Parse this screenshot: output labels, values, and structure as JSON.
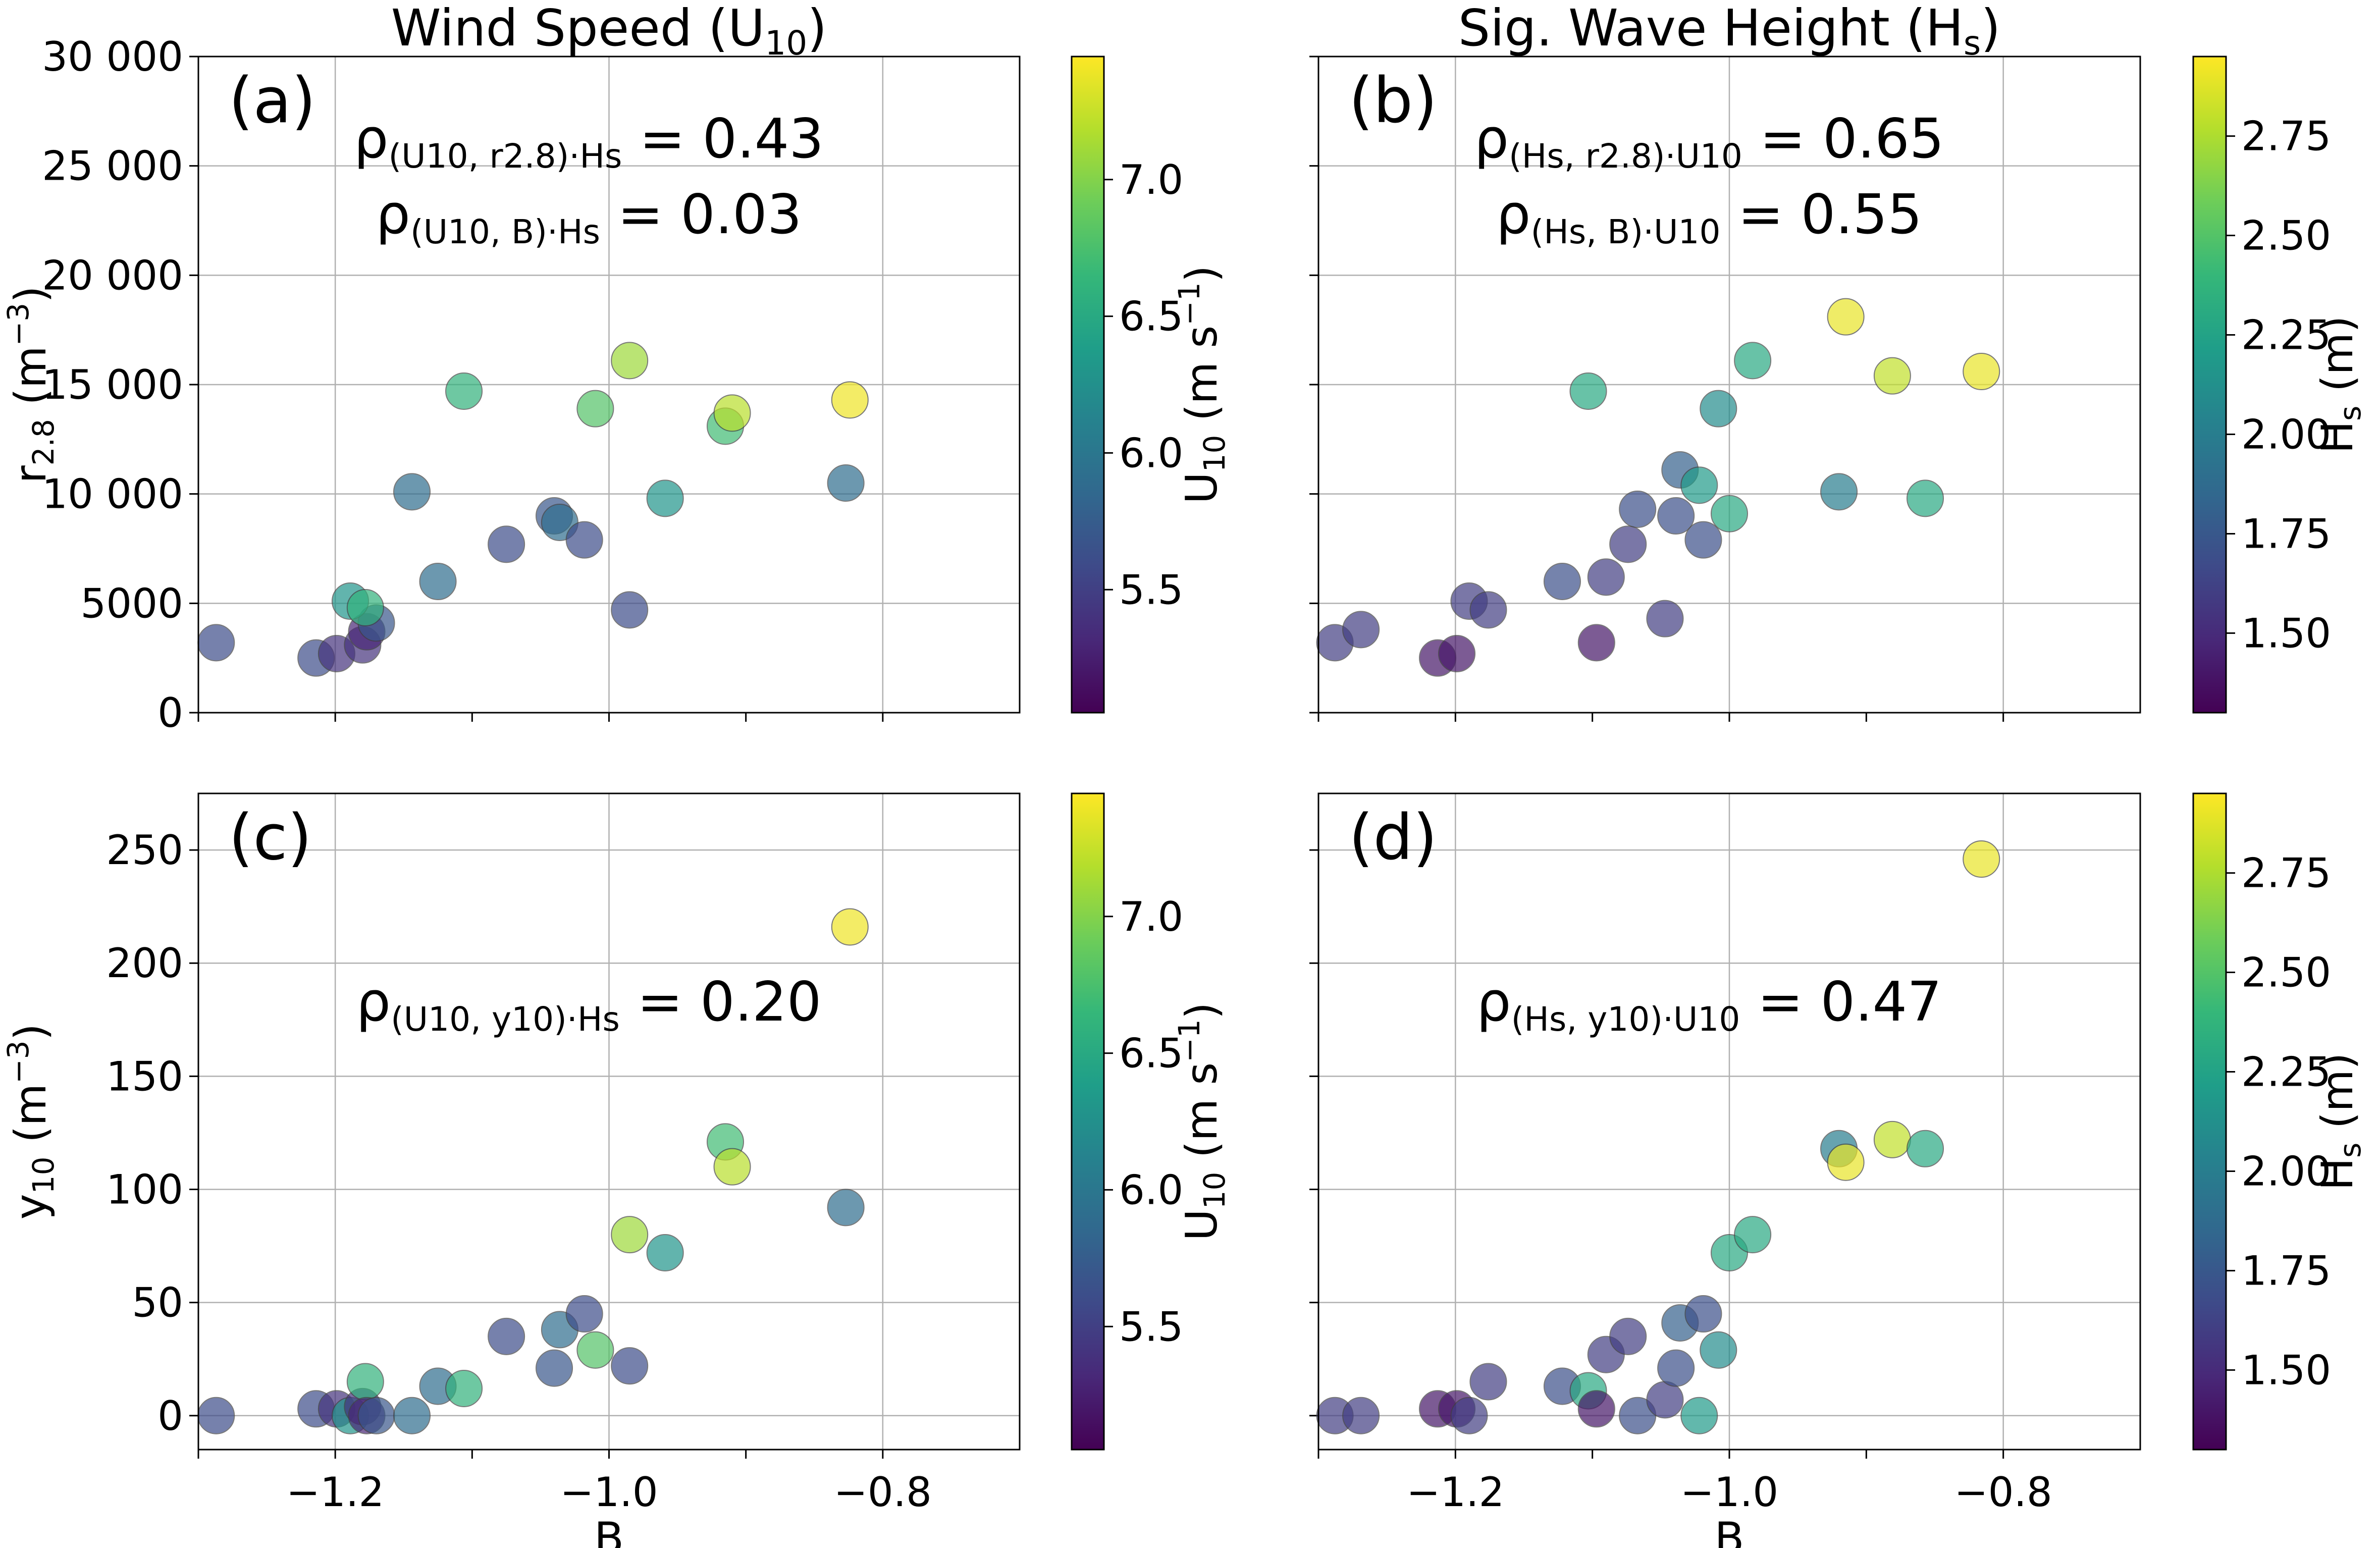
{
  "chart_data": [
    {
      "type": "scatter",
      "panel_label": "(a)",
      "title": "Wind Speed (U10)",
      "title_main": "Wind Speed (U",
      "title_sub": "10",
      "title_end": ")",
      "xlabel": "",
      "ylabel": "r2.8 (m−3)",
      "ylabel_parts": {
        "main": "r",
        "sub": "2.8",
        "mid": " (m",
        "sup": "−3",
        "end": ")"
      },
      "xlim": [
        -1.3,
        -0.7
      ],
      "ylim": [
        0,
        30000
      ],
      "xticks": [
        -1.2,
        -1.0,
        -0.8
      ],
      "xtick_labels": [
        "",
        "",
        ""
      ],
      "yticks": [
        0,
        5000,
        10000,
        15000,
        20000,
        25000,
        30000
      ],
      "ytick_labels": [
        "0",
        "5000",
        "10 000",
        "15 000",
        "20 000",
        "25 000",
        "30 000"
      ],
      "grid": true,
      "annotations": [
        {
          "text": "ρ(U10, r2.8)·Hs = 0.43",
          "parts": {
            "rho": "ρ",
            "sub": "(U10, r2.8)·Hs",
            "value": " = 0.43"
          }
        },
        {
          "text": "ρ(U10, B)·Hs = 0.03",
          "parts": {
            "rho": "ρ",
            "sub": "(U10, B)·Hs",
            "value": " = 0.03"
          }
        }
      ],
      "colorbar": {
        "label": "U10 (m s−1)",
        "label_parts": {
          "main": "U",
          "sub": "10",
          "mid": " (m s",
          "sup": "−1",
          "end": ")"
        },
        "range": [
          5.05,
          7.45
        ],
        "ticks": [
          5.5,
          6.0,
          6.5,
          7.0
        ],
        "tick_labels": [
          "5.5",
          "6.0",
          "6.5",
          "7.0"
        ],
        "colormap": "viridis"
      },
      "points": [
        {
          "x": -1.287,
          "y": 3200,
          "c": 5.6
        },
        {
          "x": -1.214,
          "y": 2500,
          "c": 5.6
        },
        {
          "x": -1.199,
          "y": 2700,
          "c": 5.4
        },
        {
          "x": -1.18,
          "y": 3100,
          "c": 5.4
        },
        {
          "x": -1.177,
          "y": 3700,
          "c": 5.3
        },
        {
          "x": -1.17,
          "y": 4100,
          "c": 5.7
        },
        {
          "x": -1.189,
          "y": 5100,
          "c": 6.3
        },
        {
          "x": -1.178,
          "y": 4800,
          "c": 6.6
        },
        {
          "x": -1.144,
          "y": 10100,
          "c": 5.9
        },
        {
          "x": -1.125,
          "y": 6000,
          "c": 5.9
        },
        {
          "x": -1.106,
          "y": 14700,
          "c": 6.6
        },
        {
          "x": -1.075,
          "y": 7700,
          "c": 5.6
        },
        {
          "x": -1.04,
          "y": 9000,
          "c": 5.7
        },
        {
          "x": -1.036,
          "y": 8700,
          "c": 5.9
        },
        {
          "x": -1.018,
          "y": 7900,
          "c": 5.6
        },
        {
          "x": -1.01,
          "y": 13900,
          "c": 6.8
        },
        {
          "x": -0.985,
          "y": 16100,
          "c": 7.1
        },
        {
          "x": -0.985,
          "y": 4700,
          "c": 5.6
        },
        {
          "x": -0.959,
          "y": 9800,
          "c": 6.3
        },
        {
          "x": -0.915,
          "y": 13100,
          "c": 6.7
        },
        {
          "x": -0.91,
          "y": 13700,
          "c": 7.2
        },
        {
          "x": -0.827,
          "y": 10500,
          "c": 5.9
        },
        {
          "x": -0.824,
          "y": 14300,
          "c": 7.4
        }
      ]
    },
    {
      "type": "scatter",
      "panel_label": "(b)",
      "title": "Sig. Wave Height (Hs)",
      "title_main": "Sig. Wave Height (H",
      "title_sub": "s",
      "title_end": ")",
      "xlabel": "",
      "ylabel": "",
      "xlim": [
        -1.3,
        -0.7
      ],
      "ylim": [
        0,
        30000
      ],
      "xticks": [
        -1.2,
        -1.0,
        -0.8
      ],
      "xtick_labels": [
        "",
        "",
        ""
      ],
      "yticks": [
        0,
        5000,
        10000,
        15000,
        20000,
        25000,
        30000
      ],
      "ytick_labels": [
        "",
        "",
        "",
        "",
        "",
        "",
        ""
      ],
      "grid": true,
      "annotations": [
        {
          "text": "ρ(Hs, r2.8)·U10 = 0.65",
          "parts": {
            "rho": "ρ",
            "sub": "(Hs, r2.8)·U10",
            "value": " = 0.65"
          }
        },
        {
          "text": "ρ(Hs, B)·U10 = 0.55",
          "parts": {
            "rho": "ρ",
            "sub": "(Hs, B)·U10",
            "value": " = 0.55"
          }
        }
      ],
      "colorbar": {
        "label": "Hs (m)",
        "label_parts": {
          "main": "H",
          "sub": "s",
          "mid": " (m",
          "sup": "",
          "end": ")"
        },
        "range": [
          1.3,
          2.95
        ],
        "ticks": [
          1.5,
          1.75,
          2.0,
          2.25,
          2.5,
          2.75
        ],
        "tick_labels": [
          "1.50",
          "1.75",
          "2.00",
          "2.25",
          "2.50",
          "2.75"
        ],
        "colormap": "viridis"
      },
      "points": [
        {
          "x": -1.288,
          "y": 3200,
          "c": 1.6
        },
        {
          "x": -1.269,
          "y": 3800,
          "c": 1.6
        },
        {
          "x": -1.213,
          "y": 2500,
          "c": 1.4
        },
        {
          "x": -1.199,
          "y": 2700,
          "c": 1.4
        },
        {
          "x": -1.19,
          "y": 5100,
          "c": 1.6
        },
        {
          "x": -1.176,
          "y": 4700,
          "c": 1.6
        },
        {
          "x": -1.122,
          "y": 6000,
          "c": 1.7
        },
        {
          "x": -1.103,
          "y": 14700,
          "c": 2.3
        },
        {
          "x": -1.097,
          "y": 3200,
          "c": 1.4
        },
        {
          "x": -1.09,
          "y": 6200,
          "c": 1.6
        },
        {
          "x": -1.074,
          "y": 7700,
          "c": 1.6
        },
        {
          "x": -1.067,
          "y": 9300,
          "c": 1.7
        },
        {
          "x": -1.047,
          "y": 4300,
          "c": 1.6
        },
        {
          "x": -1.039,
          "y": 9000,
          "c": 1.7
        },
        {
          "x": -1.036,
          "y": 11100,
          "c": 1.8
        },
        {
          "x": -1.022,
          "y": 10400,
          "c": 2.2
        },
        {
          "x": -1.019,
          "y": 7900,
          "c": 1.7
        },
        {
          "x": -1.008,
          "y": 13900,
          "c": 2.1
        },
        {
          "x": -1.0,
          "y": 9100,
          "c": 2.3
        },
        {
          "x": -0.983,
          "y": 16100,
          "c": 2.3
        },
        {
          "x": -0.92,
          "y": 10100,
          "c": 2.0
        },
        {
          "x": -0.915,
          "y": 18100,
          "c": 2.9
        },
        {
          "x": -0.881,
          "y": 15400,
          "c": 2.8
        },
        {
          "x": -0.857,
          "y": 9800,
          "c": 2.3
        },
        {
          "x": -0.816,
          "y": 15600,
          "c": 2.9
        }
      ]
    },
    {
      "type": "scatter",
      "panel_label": "(c)",
      "title": "",
      "xlabel": "B",
      "ylabel": "y10 (m−3)",
      "ylabel_parts": {
        "main": "y",
        "sub": "10",
        "mid": " (m",
        "sup": "−3",
        "end": ")"
      },
      "xlim": [
        -1.3,
        -0.7
      ],
      "ylim": [
        -15,
        275
      ],
      "xticks": [
        -1.2,
        -1.0,
        -0.8
      ],
      "xtick_labels": [
        "−1.2",
        "−1.0",
        "−0.8"
      ],
      "yticks": [
        0,
        50,
        100,
        150,
        200,
        250
      ],
      "ytick_labels": [
        "0",
        "50",
        "100",
        "150",
        "200",
        "250"
      ],
      "grid": true,
      "annotations": [
        {
          "text": "ρ(U10, y10)·Hs = 0.20",
          "parts": {
            "rho": "ρ",
            "sub": "(U10, y10)·Hs",
            "value": " = 0.20"
          }
        }
      ],
      "colorbar": {
        "label": "U10 (m s−1)",
        "label_parts": {
          "main": "U",
          "sub": "10",
          "mid": " (m s",
          "sup": "−1",
          "end": ")"
        },
        "range": [
          5.05,
          7.45
        ],
        "ticks": [
          5.5,
          6.0,
          6.5,
          7.0
        ],
        "tick_labels": [
          "5.5",
          "6.0",
          "6.5",
          "7.0"
        ],
        "colormap": "viridis"
      },
      "points": [
        {
          "x": -1.287,
          "y": 0,
          "c": 5.6
        },
        {
          "x": -1.214,
          "y": 3,
          "c": 5.6
        },
        {
          "x": -1.199,
          "y": 3,
          "c": 5.4
        },
        {
          "x": -1.189,
          "y": 0,
          "c": 6.3
        },
        {
          "x": -1.18,
          "y": 4,
          "c": 5.4
        },
        {
          "x": -1.178,
          "y": 15,
          "c": 6.6
        },
        {
          "x": -1.177,
          "y": 0,
          "c": 5.3
        },
        {
          "x": -1.17,
          "y": 0,
          "c": 5.7
        },
        {
          "x": -1.144,
          "y": 0,
          "c": 5.9
        },
        {
          "x": -1.125,
          "y": 13,
          "c": 5.9
        },
        {
          "x": -1.106,
          "y": 12,
          "c": 6.6
        },
        {
          "x": -1.075,
          "y": 35,
          "c": 5.6
        },
        {
          "x": -1.04,
          "y": 21,
          "c": 5.7
        },
        {
          "x": -1.036,
          "y": 38,
          "c": 5.9
        },
        {
          "x": -1.018,
          "y": 45,
          "c": 5.6
        },
        {
          "x": -1.01,
          "y": 29,
          "c": 6.8
        },
        {
          "x": -0.985,
          "y": 80,
          "c": 7.1
        },
        {
          "x": -0.985,
          "y": 22,
          "c": 5.6
        },
        {
          "x": -0.959,
          "y": 72,
          "c": 6.3
        },
        {
          "x": -0.915,
          "y": 121,
          "c": 6.7
        },
        {
          "x": -0.91,
          "y": 110,
          "c": 7.2
        },
        {
          "x": -0.827,
          "y": 92,
          "c": 5.9
        },
        {
          "x": -0.824,
          "y": 216,
          "c": 7.4
        }
      ]
    },
    {
      "type": "scatter",
      "panel_label": "(d)",
      "title": "",
      "xlabel": "B",
      "ylabel": "",
      "xlim": [
        -1.3,
        -0.7
      ],
      "ylim": [
        -15,
        275
      ],
      "xticks": [
        -1.2,
        -1.0,
        -0.8
      ],
      "xtick_labels": [
        "−1.2",
        "−1.0",
        "−0.8"
      ],
      "yticks": [
        0,
        50,
        100,
        150,
        200,
        250
      ],
      "ytick_labels": [
        "",
        "",
        "",
        "",
        "",
        ""
      ],
      "grid": true,
      "annotations": [
        {
          "text": "ρ(Hs, y10)·U10 = 0.47",
          "parts": {
            "rho": "ρ",
            "sub": "(Hs, y10)·U10",
            "value": " = 0.47"
          }
        }
      ],
      "colorbar": {
        "label": "Hs (m)",
        "label_parts": {
          "main": "H",
          "sub": "s",
          "mid": " (m",
          "sup": "",
          "end": ")"
        },
        "range": [
          1.3,
          2.95
        ],
        "ticks": [
          1.5,
          1.75,
          2.0,
          2.25,
          2.5,
          2.75
        ],
        "tick_labels": [
          "1.50",
          "1.75",
          "2.00",
          "2.25",
          "2.50",
          "2.75"
        ],
        "colormap": "viridis"
      },
      "points": [
        {
          "x": -1.288,
          "y": 0,
          "c": 1.6
        },
        {
          "x": -1.269,
          "y": 0,
          "c": 1.6
        },
        {
          "x": -1.213,
          "y": 3,
          "c": 1.4
        },
        {
          "x": -1.199,
          "y": 3,
          "c": 1.4
        },
        {
          "x": -1.19,
          "y": 0,
          "c": 1.6
        },
        {
          "x": -1.176,
          "y": 15,
          "c": 1.6
        },
        {
          "x": -1.122,
          "y": 13,
          "c": 1.7
        },
        {
          "x": -1.103,
          "y": 11,
          "c": 2.3
        },
        {
          "x": -1.097,
          "y": 3,
          "c": 1.4
        },
        {
          "x": -1.09,
          "y": 27,
          "c": 1.6
        },
        {
          "x": -1.074,
          "y": 35,
          "c": 1.6
        },
        {
          "x": -1.067,
          "y": 0,
          "c": 1.7
        },
        {
          "x": -1.047,
          "y": 7,
          "c": 1.6
        },
        {
          "x": -1.039,
          "y": 21,
          "c": 1.7
        },
        {
          "x": -1.036,
          "y": 41,
          "c": 1.8
        },
        {
          "x": -1.022,
          "y": 0,
          "c": 2.2
        },
        {
          "x": -1.019,
          "y": 45,
          "c": 1.7
        },
        {
          "x": -1.008,
          "y": 29,
          "c": 2.1
        },
        {
          "x": -1.0,
          "y": 72,
          "c": 2.3
        },
        {
          "x": -0.983,
          "y": 80,
          "c": 2.3
        },
        {
          "x": -0.92,
          "y": 118,
          "c": 2.0
        },
        {
          "x": -0.915,
          "y": 112,
          "c": 2.9
        },
        {
          "x": -0.881,
          "y": 122,
          "c": 2.8
        },
        {
          "x": -0.857,
          "y": 118,
          "c": 2.3
        },
        {
          "x": -0.816,
          "y": 246,
          "c": 2.9
        }
      ]
    }
  ]
}
